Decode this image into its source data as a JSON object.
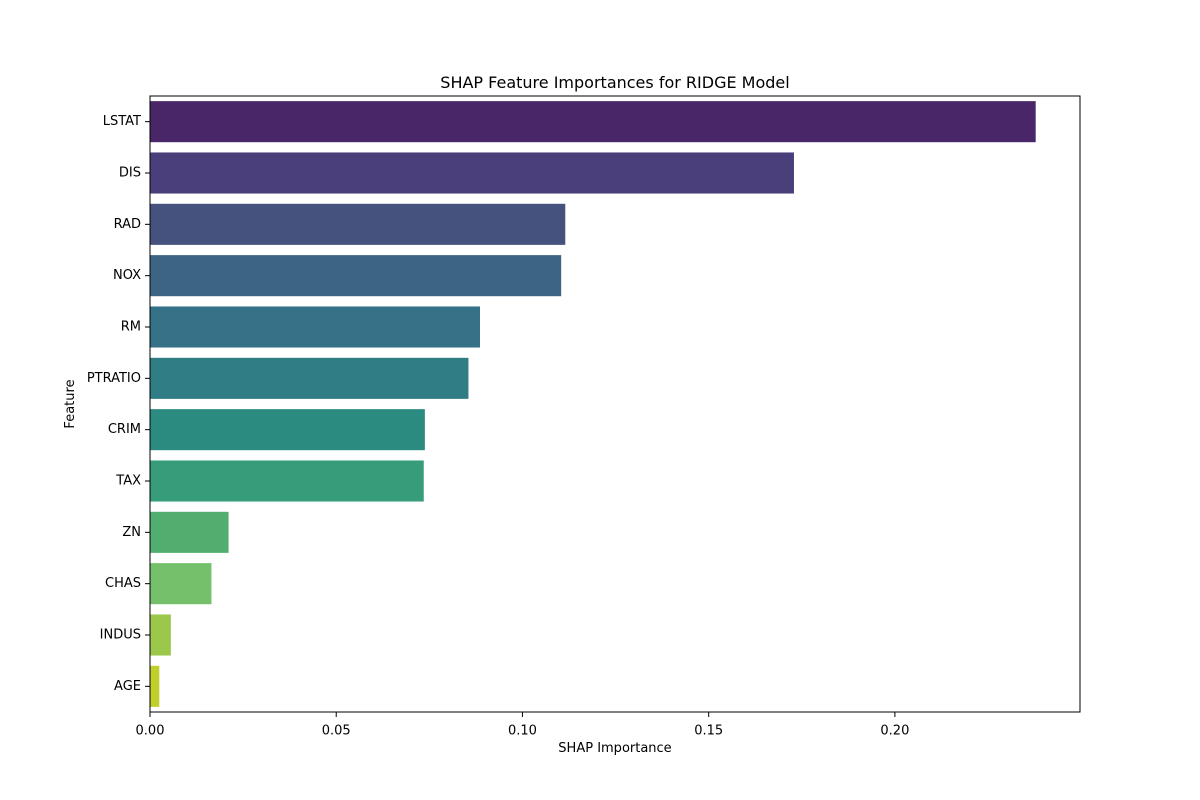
{
  "chart_data": {
    "type": "bar",
    "orientation": "horizontal",
    "title": "SHAP Feature Importances for RIDGE Model",
    "xlabel": "SHAP Importance",
    "ylabel": "Feature",
    "xlim": [
      0,
      0.2497
    ],
    "xticks": [
      0.0,
      0.05,
      0.1,
      0.15,
      0.2
    ],
    "xtick_labels": [
      "0.00",
      "0.05",
      "0.10",
      "0.15",
      "0.20"
    ],
    "grid": false,
    "legend": "none",
    "categories": [
      "LSTAT",
      "DIS",
      "RAD",
      "NOX",
      "RM",
      "PTRATIO",
      "CRIM",
      "TAX",
      "ZN",
      "CHAS",
      "INDUS",
      "AGE"
    ],
    "values": [
      0.2378,
      0.1729,
      0.1115,
      0.1104,
      0.0886,
      0.0855,
      0.0738,
      0.0735,
      0.0211,
      0.0165,
      0.0056,
      0.0025
    ],
    "colors": [
      "#482667",
      "#4a3f7a",
      "#46527e",
      "#3e6484",
      "#357187",
      "#307d86",
      "#2c8b80",
      "#379c79",
      "#52ae6f",
      "#74c06b",
      "#9bc84a",
      "#c1cf2a"
    ]
  }
}
